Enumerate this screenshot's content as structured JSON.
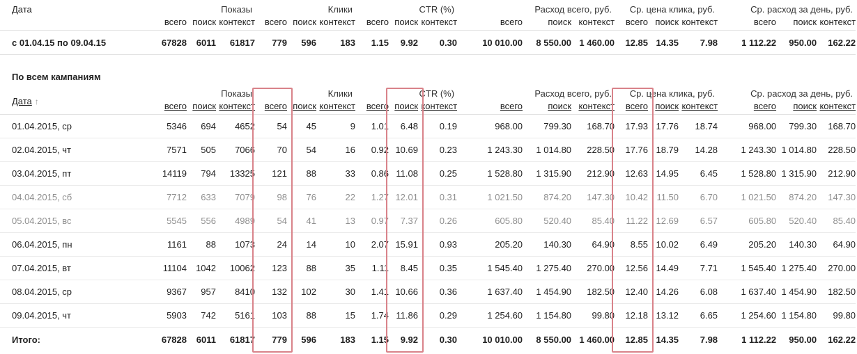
{
  "colors": {
    "highlight_border": "#d9838a",
    "weekend_text": "#8f8f8f",
    "text": "#222222",
    "separator_line": "#e2e2e2"
  },
  "groups": [
    {
      "key": "impressions",
      "label": "Показы"
    },
    {
      "key": "clicks",
      "label": "Клики"
    },
    {
      "key": "ctr",
      "label": "CTR (%)"
    },
    {
      "key": "spend_total",
      "label": "Расход всего, руб."
    },
    {
      "key": "avg_cpc",
      "label": "Ср. цена клика, руб."
    },
    {
      "key": "avg_daily_spend",
      "label": "Ср. расход за день, руб."
    }
  ],
  "sub_headers": [
    {
      "key": "total",
      "label": "всего"
    },
    {
      "key": "search",
      "label": "поиск"
    },
    {
      "key": "context",
      "label": "контекст"
    }
  ],
  "summary_table": {
    "date_header": "Дата",
    "row_label": "с 01.04.15 по 09.04.15",
    "values": [
      "67828",
      "6011",
      "61817",
      "779",
      "596",
      "183",
      "1.15",
      "9.92",
      "0.30",
      "10 010.00",
      "8 550.00",
      "1 460.00",
      "12.85",
      "14.35",
      "7.98",
      "1 112.22",
      "950.00",
      "162.22"
    ]
  },
  "section_title": "По всем кампаниям",
  "campaigns_table": {
    "date_header": "Дата",
    "sort_arrow": "↑",
    "highlighted_value_columns": [
      3,
      7,
      12
    ],
    "rows": [
      {
        "date": "01.04.2015, ср",
        "weekend": false,
        "values": [
          "5346",
          "694",
          "4652",
          "54",
          "45",
          "9",
          "1.01",
          "6.48",
          "0.19",
          "968.00",
          "799.30",
          "168.70",
          "17.93",
          "17.76",
          "18.74",
          "968.00",
          "799.30",
          "168.70"
        ]
      },
      {
        "date": "02.04.2015, чт",
        "weekend": false,
        "values": [
          "7571",
          "505",
          "7066",
          "70",
          "54",
          "16",
          "0.92",
          "10.69",
          "0.23",
          "1 243.30",
          "1 014.80",
          "228.50",
          "17.76",
          "18.79",
          "14.28",
          "1 243.30",
          "1 014.80",
          "228.50"
        ]
      },
      {
        "date": "03.04.2015, пт",
        "weekend": false,
        "values": [
          "14119",
          "794",
          "13325",
          "121",
          "88",
          "33",
          "0.86",
          "11.08",
          "0.25",
          "1 528.80",
          "1 315.90",
          "212.90",
          "12.63",
          "14.95",
          "6.45",
          "1 528.80",
          "1 315.90",
          "212.90"
        ]
      },
      {
        "date": "04.04.2015, сб",
        "weekend": true,
        "values": [
          "7712",
          "633",
          "7079",
          "98",
          "76",
          "22",
          "1.27",
          "12.01",
          "0.31",
          "1 021.50",
          "874.20",
          "147.30",
          "10.42",
          "11.50",
          "6.70",
          "1 021.50",
          "874.20",
          "147.30"
        ]
      },
      {
        "date": "05.04.2015, вс",
        "weekend": true,
        "values": [
          "5545",
          "556",
          "4989",
          "54",
          "41",
          "13",
          "0.97",
          "7.37",
          "0.26",
          "605.80",
          "520.40",
          "85.40",
          "11.22",
          "12.69",
          "6.57",
          "605.80",
          "520.40",
          "85.40"
        ]
      },
      {
        "date": "06.04.2015, пн",
        "weekend": false,
        "values": [
          "1161",
          "88",
          "1073",
          "24",
          "14",
          "10",
          "2.07",
          "15.91",
          "0.93",
          "205.20",
          "140.30",
          "64.90",
          "8.55",
          "10.02",
          "6.49",
          "205.20",
          "140.30",
          "64.90"
        ]
      },
      {
        "date": "07.04.2015, вт",
        "weekend": false,
        "values": [
          "11104",
          "1042",
          "10062",
          "123",
          "88",
          "35",
          "1.11",
          "8.45",
          "0.35",
          "1 545.40",
          "1 275.40",
          "270.00",
          "12.56",
          "14.49",
          "7.71",
          "1 545.40",
          "1 275.40",
          "270.00"
        ]
      },
      {
        "date": "08.04.2015, ср",
        "weekend": false,
        "values": [
          "9367",
          "957",
          "8410",
          "132",
          "102",
          "30",
          "1.41",
          "10.66",
          "0.36",
          "1 637.40",
          "1 454.90",
          "182.50",
          "12.40",
          "14.26",
          "6.08",
          "1 637.40",
          "1 454.90",
          "182.50"
        ]
      },
      {
        "date": "09.04.2015, чт",
        "weekend": false,
        "values": [
          "5903",
          "742",
          "5161",
          "103",
          "88",
          "15",
          "1.74",
          "11.86",
          "0.29",
          "1 254.60",
          "1 154.80",
          "99.80",
          "12.18",
          "13.12",
          "6.65",
          "1 254.60",
          "1 154.80",
          "99.80"
        ]
      }
    ],
    "total_row": {
      "label": "Итого:",
      "values": [
        "67828",
        "6011",
        "61817",
        "779",
        "596",
        "183",
        "1.15",
        "9.92",
        "0.30",
        "10 010.00",
        "8 550.00",
        "1 460.00",
        "12.85",
        "14.35",
        "7.98",
        "1 112.22",
        "950.00",
        "162.22"
      ]
    }
  }
}
